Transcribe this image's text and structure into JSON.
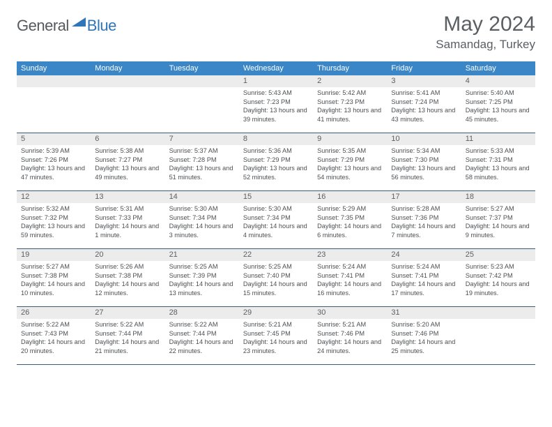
{
  "logo": {
    "part1": "General",
    "part2": "Blue"
  },
  "title": "May 2024",
  "location": "Samandag, Turkey",
  "header_bg": "#3b86c6",
  "days_of_week": [
    "Sunday",
    "Monday",
    "Tuesday",
    "Wednesday",
    "Thursday",
    "Friday",
    "Saturday"
  ],
  "weeks": [
    [
      {
        "n": "",
        "sr": "",
        "ss": "",
        "dl": ""
      },
      {
        "n": "",
        "sr": "",
        "ss": "",
        "dl": ""
      },
      {
        "n": "",
        "sr": "",
        "ss": "",
        "dl": ""
      },
      {
        "n": "1",
        "sr": "Sunrise: 5:43 AM",
        "ss": "Sunset: 7:23 PM",
        "dl": "Daylight: 13 hours and 39 minutes."
      },
      {
        "n": "2",
        "sr": "Sunrise: 5:42 AM",
        "ss": "Sunset: 7:23 PM",
        "dl": "Daylight: 13 hours and 41 minutes."
      },
      {
        "n": "3",
        "sr": "Sunrise: 5:41 AM",
        "ss": "Sunset: 7:24 PM",
        "dl": "Daylight: 13 hours and 43 minutes."
      },
      {
        "n": "4",
        "sr": "Sunrise: 5:40 AM",
        "ss": "Sunset: 7:25 PM",
        "dl": "Daylight: 13 hours and 45 minutes."
      }
    ],
    [
      {
        "n": "5",
        "sr": "Sunrise: 5:39 AM",
        "ss": "Sunset: 7:26 PM",
        "dl": "Daylight: 13 hours and 47 minutes."
      },
      {
        "n": "6",
        "sr": "Sunrise: 5:38 AM",
        "ss": "Sunset: 7:27 PM",
        "dl": "Daylight: 13 hours and 49 minutes."
      },
      {
        "n": "7",
        "sr": "Sunrise: 5:37 AM",
        "ss": "Sunset: 7:28 PM",
        "dl": "Daylight: 13 hours and 51 minutes."
      },
      {
        "n": "8",
        "sr": "Sunrise: 5:36 AM",
        "ss": "Sunset: 7:29 PM",
        "dl": "Daylight: 13 hours and 52 minutes."
      },
      {
        "n": "9",
        "sr": "Sunrise: 5:35 AM",
        "ss": "Sunset: 7:29 PM",
        "dl": "Daylight: 13 hours and 54 minutes."
      },
      {
        "n": "10",
        "sr": "Sunrise: 5:34 AM",
        "ss": "Sunset: 7:30 PM",
        "dl": "Daylight: 13 hours and 56 minutes."
      },
      {
        "n": "11",
        "sr": "Sunrise: 5:33 AM",
        "ss": "Sunset: 7:31 PM",
        "dl": "Daylight: 13 hours and 58 minutes."
      }
    ],
    [
      {
        "n": "12",
        "sr": "Sunrise: 5:32 AM",
        "ss": "Sunset: 7:32 PM",
        "dl": "Daylight: 13 hours and 59 minutes."
      },
      {
        "n": "13",
        "sr": "Sunrise: 5:31 AM",
        "ss": "Sunset: 7:33 PM",
        "dl": "Daylight: 14 hours and 1 minute."
      },
      {
        "n": "14",
        "sr": "Sunrise: 5:30 AM",
        "ss": "Sunset: 7:34 PM",
        "dl": "Daylight: 14 hours and 3 minutes."
      },
      {
        "n": "15",
        "sr": "Sunrise: 5:30 AM",
        "ss": "Sunset: 7:34 PM",
        "dl": "Daylight: 14 hours and 4 minutes."
      },
      {
        "n": "16",
        "sr": "Sunrise: 5:29 AM",
        "ss": "Sunset: 7:35 PM",
        "dl": "Daylight: 14 hours and 6 minutes."
      },
      {
        "n": "17",
        "sr": "Sunrise: 5:28 AM",
        "ss": "Sunset: 7:36 PM",
        "dl": "Daylight: 14 hours and 7 minutes."
      },
      {
        "n": "18",
        "sr": "Sunrise: 5:27 AM",
        "ss": "Sunset: 7:37 PM",
        "dl": "Daylight: 14 hours and 9 minutes."
      }
    ],
    [
      {
        "n": "19",
        "sr": "Sunrise: 5:27 AM",
        "ss": "Sunset: 7:38 PM",
        "dl": "Daylight: 14 hours and 10 minutes."
      },
      {
        "n": "20",
        "sr": "Sunrise: 5:26 AM",
        "ss": "Sunset: 7:38 PM",
        "dl": "Daylight: 14 hours and 12 minutes."
      },
      {
        "n": "21",
        "sr": "Sunrise: 5:25 AM",
        "ss": "Sunset: 7:39 PM",
        "dl": "Daylight: 14 hours and 13 minutes."
      },
      {
        "n": "22",
        "sr": "Sunrise: 5:25 AM",
        "ss": "Sunset: 7:40 PM",
        "dl": "Daylight: 14 hours and 15 minutes."
      },
      {
        "n": "23",
        "sr": "Sunrise: 5:24 AM",
        "ss": "Sunset: 7:41 PM",
        "dl": "Daylight: 14 hours and 16 minutes."
      },
      {
        "n": "24",
        "sr": "Sunrise: 5:24 AM",
        "ss": "Sunset: 7:41 PM",
        "dl": "Daylight: 14 hours and 17 minutes."
      },
      {
        "n": "25",
        "sr": "Sunrise: 5:23 AM",
        "ss": "Sunset: 7:42 PM",
        "dl": "Daylight: 14 hours and 19 minutes."
      }
    ],
    [
      {
        "n": "26",
        "sr": "Sunrise: 5:22 AM",
        "ss": "Sunset: 7:43 PM",
        "dl": "Daylight: 14 hours and 20 minutes."
      },
      {
        "n": "27",
        "sr": "Sunrise: 5:22 AM",
        "ss": "Sunset: 7:44 PM",
        "dl": "Daylight: 14 hours and 21 minutes."
      },
      {
        "n": "28",
        "sr": "Sunrise: 5:22 AM",
        "ss": "Sunset: 7:44 PM",
        "dl": "Daylight: 14 hours and 22 minutes."
      },
      {
        "n": "29",
        "sr": "Sunrise: 5:21 AM",
        "ss": "Sunset: 7:45 PM",
        "dl": "Daylight: 14 hours and 23 minutes."
      },
      {
        "n": "30",
        "sr": "Sunrise: 5:21 AM",
        "ss": "Sunset: 7:46 PM",
        "dl": "Daylight: 14 hours and 24 minutes."
      },
      {
        "n": "31",
        "sr": "Sunrise: 5:20 AM",
        "ss": "Sunset: 7:46 PM",
        "dl": "Daylight: 14 hours and 25 minutes."
      },
      {
        "n": "",
        "sr": "",
        "ss": "",
        "dl": ""
      }
    ]
  ]
}
